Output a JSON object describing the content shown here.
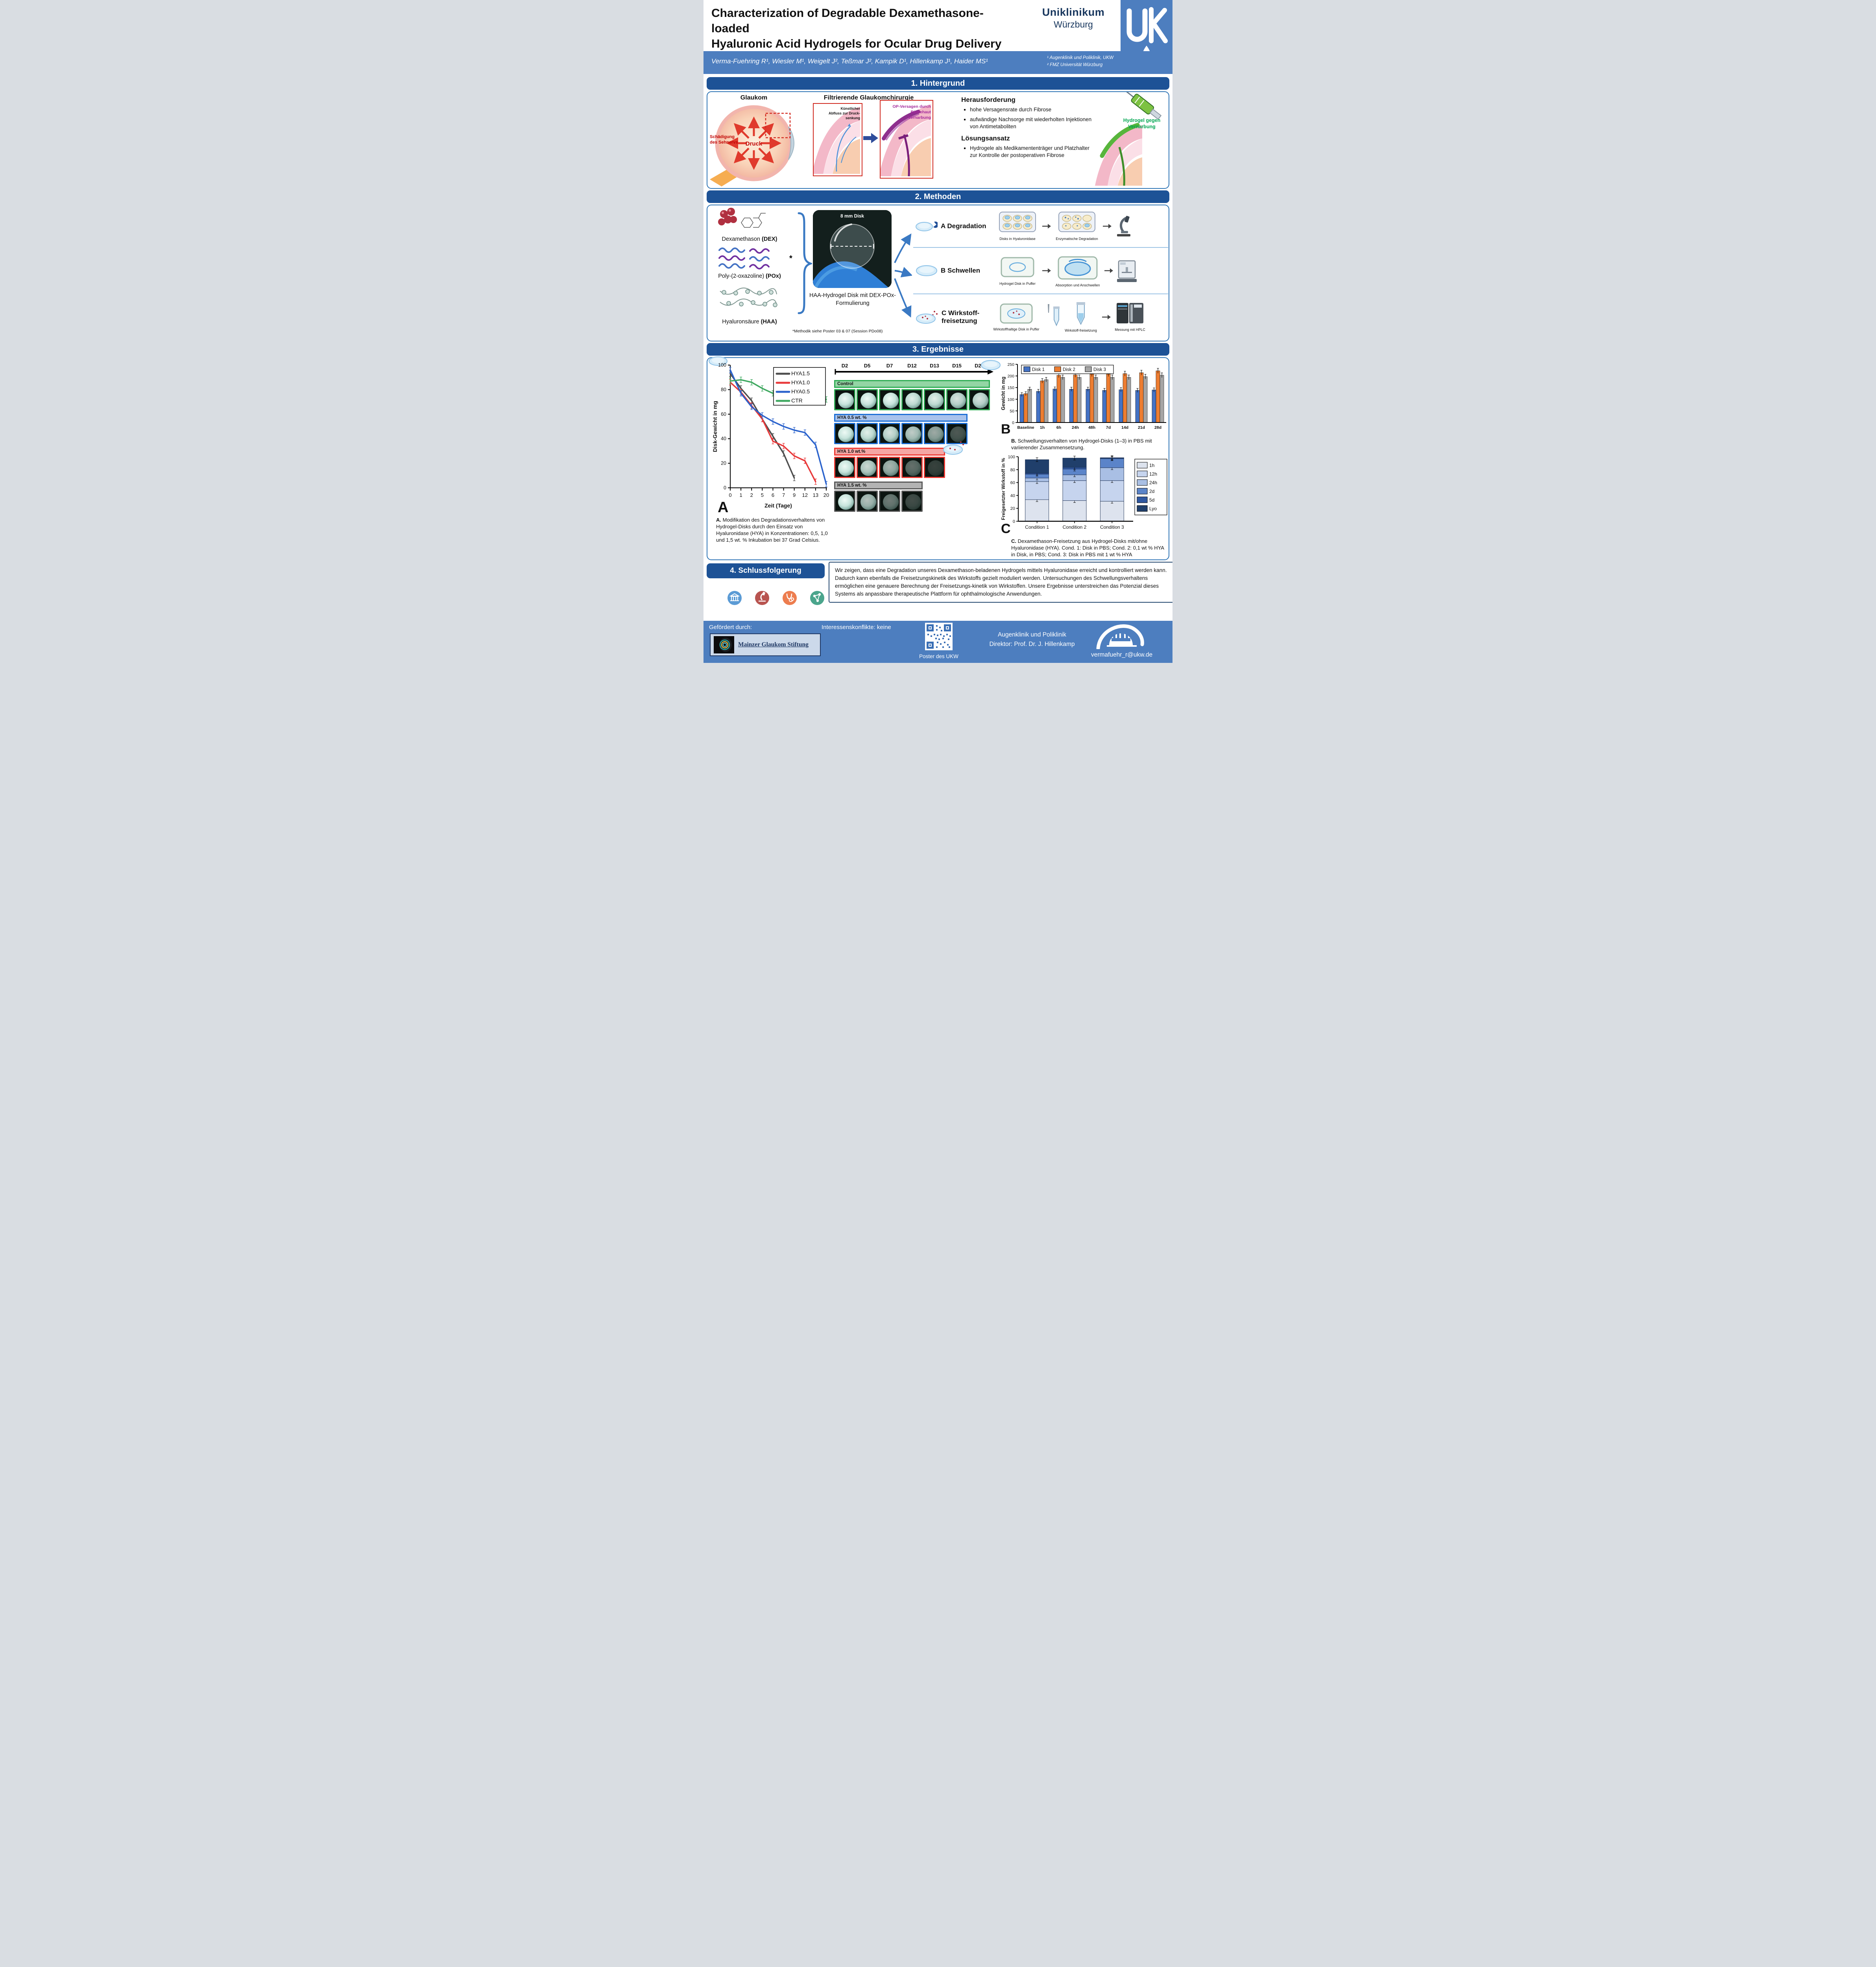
{
  "header": {
    "title_line1": "Characterization of Degradable Dexamethasone-loaded",
    "title_line2": "Hyaluronic Acid Hydrogels for Ocular Drug Delivery",
    "org_line1": "Uniklinikum",
    "org_line2": "Würzburg",
    "authors": "Verma-Fuehring R¹, Wiesler M¹, Weigelt J², Teßmar J², Kampik D¹, Hillenkamp J¹, Haider MS¹",
    "affiliation1": "¹ Augenklinik und Poliklinik, UKW",
    "affiliation2": "² FMZ Universität Würzburg"
  },
  "section1": {
    "banner": "1. Hintergrund",
    "glaukom_title": "Glaukom",
    "sehnerv_label": "Schädigung des Sehnervs",
    "druck_label": "Druck",
    "surgery_title": "Filtrierende Glaukomchirurgie",
    "panel1_label": "Künstlicher Abfluss zur Druck-senkung",
    "panel2_label": "OP-Versagen durch Bindehaut Vernarbung",
    "challenge_title": "Herausforderung",
    "challenge_bullets": [
      "hohe Versagensrate durch Fibrose",
      "aufwändige Nachsorge mit wiederholten Injektionen von Antimetaboliten"
    ],
    "solution_title": "Lösungsansatz",
    "solution_bullets": [
      "Hydrogele als Medikamententräger und Platzhalter zur Kontrolle der postoperativen Fibrose"
    ],
    "hydrogel_label": "Hydrogel gegen Vernarbung"
  },
  "section2": {
    "banner": "2. Methoden",
    "components": [
      {
        "label": "Dexamethason ",
        "abbr": "(DEX)"
      },
      {
        "label": "Poly-(2-oxazoline) ",
        "abbr": "(POx)"
      },
      {
        "label": "Hyaluronsäure ",
        "abbr": "(HAA)"
      }
    ],
    "footnote_marker": "*",
    "disk_label": "8 mm Disk",
    "disk_caption": "HAA-Hydrogel Disk mit DEX-POx-Formulierung",
    "footnote": "*Methodik siehe Poster 03 & 07 (Session PDo08)",
    "methods": [
      {
        "name": "A Degradation",
        "steps": [
          "Disks in Hyaluronidase",
          "Enzymatische Degradation"
        ]
      },
      {
        "name": "B Schwellen",
        "steps": [
          "Hydrogel Disk in Puffer",
          "Absorption und Anschwellen"
        ]
      },
      {
        "name": "C Wirkstoff-freisetzung",
        "steps": [
          "Wirkstoffhaltige Disk in Puffer",
          "Wirkstoff-freisetzung",
          "Messung mit HPLC"
        ]
      }
    ]
  },
  "section3": {
    "banner": "3. Ergebnisse",
    "disk_grid": {
      "timepoints": [
        "D2",
        "D5",
        "D7",
        "D12",
        "D13",
        "D15",
        "D20"
      ],
      "rows": [
        {
          "label": "Control",
          "border": "#2fac54",
          "fill": "#93d5a4",
          "disks": 7,
          "tile_fade": [
            1,
            1,
            1,
            0.95,
            0.95,
            0.9,
            0.9
          ]
        },
        {
          "label": "HYA 0.5 wt. %",
          "border": "#1b6ed6",
          "fill": "#a8c2ec",
          "disks": 6,
          "tile_fade": [
            1,
            0.95,
            0.9,
            0.8,
            0.65,
            0.3
          ]
        },
        {
          "label": "HYA 1.0 wt.%",
          "border": "#ee3932",
          "fill": "#f5a6a4",
          "disks": 5,
          "tile_fade": [
            1,
            0.85,
            0.7,
            0.4,
            0.2
          ]
        },
        {
          "label": "HYA 1.5 wt. %",
          "border": "#595959",
          "fill": "#b3b3b3",
          "disks": 4,
          "tile_fade": [
            1,
            0.75,
            0.45,
            0.25
          ]
        }
      ]
    },
    "caption_a_label": "A.",
    "caption_a_text": "Modifikation des Degradationsverhaltens von Hydrogel-Disks durch den Einsatz von Hyaluronidase (HYA) in Konzentrationen: 0,5, 1,0 und 1,5 wt. % Inkubation bei 37 Grad Celsius.",
    "caption_b_label": "B.",
    "caption_b_text": "Schwellungsverhalten von Hydrogel-Disks (1–3) in PBS mit variierender Zusammensetzung.",
    "caption_c_label": "C.",
    "caption_c_text": "Dexamethason-Freisetzung aus Hydrogel-Disks mit/ohne Hyaluronidase (HYA). Cond. 1: Disk in PBS; Cond. 2: 0,1 wt % HYA in Disk, in PBS; Cond. 3: Disk in PBS mit 1 wt % HYA"
  },
  "chart_data": [
    {
      "id": "chartA",
      "type": "line",
      "panel_label": "A",
      "xlabel": "Zeit (Tage)",
      "ylabel": "Disk-Gewicht in mg",
      "ylim": [
        0,
        100
      ],
      "yticks": [
        0,
        20,
        40,
        60,
        80,
        100
      ],
      "categories": [
        "0",
        "1",
        "2",
        "5",
        "6",
        "7",
        "9",
        "12",
        "13",
        "20"
      ],
      "series": [
        {
          "name": "HYA1.5",
          "color": "#4d4d4d",
          "values": [
            93,
            81,
            71,
            56,
            42,
            28,
            8,
            null,
            null,
            null
          ]
        },
        {
          "name": "HYA1.0",
          "color": "#e8393a",
          "values": [
            86,
            78,
            67,
            56,
            38,
            34,
            26,
            22,
            5,
            null
          ]
        },
        {
          "name": "HYA0.5",
          "color": "#2a62cc",
          "values": [
            96,
            77,
            66,
            59,
            54,
            50,
            47,
            45,
            35,
            3
          ]
        },
        {
          "name": "CTR",
          "color": "#3fa860",
          "values": [
            87,
            88,
            86,
            81,
            77,
            76,
            74,
            72,
            73,
            72
          ]
        }
      ],
      "legend_position": "top-right",
      "grid": false
    },
    {
      "id": "chartB",
      "type": "bar",
      "panel_label": "B",
      "xlabel": "",
      "ylabel": "Gewicht in mg",
      "ylim": [
        0,
        250
      ],
      "yticks": [
        0,
        50,
        100,
        150,
        200,
        250
      ],
      "categories": [
        "Baseline",
        "1h",
        "6h",
        "24h",
        "48h",
        "7d",
        "14d",
        "21d",
        "28d"
      ],
      "series": [
        {
          "name": "Disk 1",
          "color": "#4472c4",
          "values": [
            120,
            134,
            144,
            143,
            143,
            138,
            141,
            138,
            140
          ]
        },
        {
          "name": "Disk 2",
          "color": "#ed7d31",
          "values": [
            124,
            179,
            203,
            205,
            208,
            208,
            210,
            214,
            222
          ]
        },
        {
          "name": "Disk 3",
          "color": "#a5a5a5",
          "values": [
            143,
            184,
            194,
            194,
            194,
            194,
            194,
            197,
            203
          ]
        }
      ],
      "legend_position": "top",
      "grid": false
    },
    {
      "id": "chartC",
      "type": "stacked-bar",
      "panel_label": "C",
      "xlabel": "",
      "ylabel": "Freigesetzter Wirkstoff in %",
      "ylim": [
        0,
        100
      ],
      "yticks": [
        0,
        20,
        40,
        60,
        80,
        100
      ],
      "categories": [
        "Condition 1",
        "Condition 2",
        "Condition 3"
      ],
      "series": [
        {
          "name": "1h",
          "color": "#dde3ee",
          "values": [
            33.5,
            32,
            31
          ]
        },
        {
          "name": "12h",
          "color": "#c6d4ee",
          "values": [
            28,
            31,
            32
          ]
        },
        {
          "name": "24h",
          "color": "#a9bfe4",
          "values": [
            5.5,
            9,
            20
          ]
        },
        {
          "name": "2d",
          "color": "#5b84c9",
          "values": [
            6,
            9,
            14
          ]
        },
        {
          "name": "5d",
          "color": "#2f57a0",
          "values": [
            1.5,
            2.5,
            1
          ]
        },
        {
          "name": "Lyo",
          "color": "#203f6b",
          "values": [
            21,
            14.5,
            0.5
          ]
        }
      ],
      "legend_position": "right",
      "grid": false
    }
  ],
  "section4": {
    "banner": "4. Schlussfolgerung",
    "text": "Wir zeigen, dass eine Degradation unseres Dexamethason-beladenen Hydrogels mittels Hyaluronidase erreicht und kontrolliert werden kann. Dadurch kann ebenfalls die Freisetzungskinetik des Wirkstoffs gezielt moduliert werden. Untersuchungen des Schwellungsverhaltens ermöglichen eine genauere Berechnung der Freisetzungs-kinetik von Wirkstoffen. Unsere Ergebnisse unterstreichen das Potenzial dieses Systems als anpassbare therapeutische Plattform für ophthalmologische Anwendungen."
  },
  "footer": {
    "funded_by": "Gefördert durch:",
    "funder": "Mainzer Glaukom Stiftung",
    "conflicts": "Interessenskonflikte: keine",
    "qr_caption": "Poster des UKW",
    "clinic_line1": "Augenklinik und Poliklinik",
    "clinic_line2": "Direktor: Prof. Dr. J. Hillenkamp",
    "email": "vermafuehr_r@ukw.de",
    "pins": [
      {
        "name": "institution-icon",
        "color": "#5b9bd5"
      },
      {
        "name": "microscope-icon",
        "color": "#b85450"
      },
      {
        "name": "stethoscope-icon",
        "color": "#ed7d4f"
      },
      {
        "name": "network-icon",
        "color": "#4ba58c"
      }
    ]
  },
  "colors": {
    "band_blue": "#4d7ebf",
    "banner_blue": "#1d5296",
    "box_border": "#2e74b5",
    "navy_text": "#17365d",
    "red_accent": "#c00000",
    "green_accent": "#00a651",
    "purple_accent": "#a3299b"
  }
}
